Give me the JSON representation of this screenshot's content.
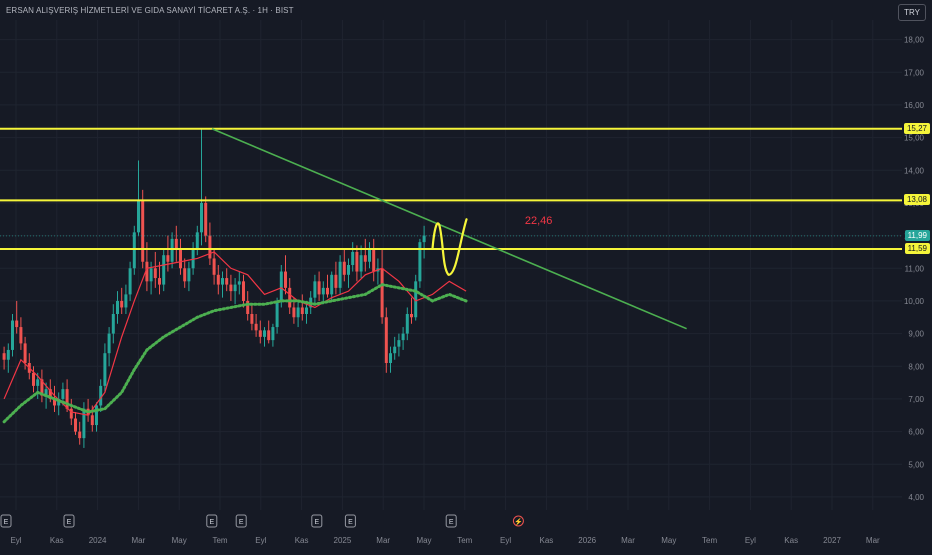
{
  "header": {
    "title": "ERSAN ALIŞVERIŞ HİZMETLERİ VE GIDA SANAYİ TİCARET A.Ş. · 1H · BIST",
    "currency": "TRY"
  },
  "colors": {
    "background": "#161a25",
    "grid": "#1f2430",
    "up": "#26a69a",
    "down": "#ef5350",
    "support_lines": "#f5f53a",
    "trendline": "#4caf50",
    "ema_fast": "#f23645",
    "ema_slow": "#4caf50",
    "current_price_tag": "#26a69a",
    "drawing_curve": "#f5f53a",
    "annotation": "#f23645"
  },
  "chart_data": {
    "type": "candlestick",
    "ylim": [
      3.6,
      18.6
    ],
    "yticks": [
      "4,00",
      "5,00",
      "6,00",
      "7,00",
      "8,00",
      "9,00",
      "10,00",
      "11,00",
      "12,00",
      "13,00",
      "14,00",
      "15,00",
      "16,00",
      "17,00",
      "18,00"
    ],
    "xticks": [
      "Eyl",
      "Kas",
      "2024",
      "Mar",
      "May",
      "Tem",
      "Eyl",
      "Kas",
      "2025",
      "Mar",
      "May",
      "Tem",
      "Eyl",
      "Kas",
      "2026",
      "Mar",
      "May",
      "Tem",
      "Eyl",
      "Kas",
      "2027",
      "Mar"
    ],
    "horizontal_levels": [
      {
        "label": "15,27",
        "value": 15.27
      },
      {
        "label": "13,08",
        "value": 13.08
      },
      {
        "label": "11,59",
        "value": 11.59
      }
    ],
    "current_price": {
      "label": "11,99",
      "value": 11.99
    },
    "trendline": {
      "from": {
        "x": 50.0,
        "y": 15.27
      },
      "to": {
        "x": 163.0,
        "y": 9.15
      }
    },
    "annotation": {
      "text": "22,46",
      "x": 124.5,
      "y": 12.35
    },
    "events": [
      {
        "label": "E",
        "x": 0
      },
      {
        "label": "E",
        "x": 15
      },
      {
        "label": "E",
        "x": 49
      },
      {
        "label": "E",
        "x": 56
      },
      {
        "label": "E",
        "x": 74
      },
      {
        "label": "E",
        "x": 82
      },
      {
        "label": "E",
        "x": 106
      },
      {
        "label": "⚡",
        "x": 122
      }
    ],
    "ohlc": [
      [
        8.4,
        8.6,
        7.9,
        8.2
      ],
      [
        8.2,
        8.7,
        7.8,
        8.5
      ],
      [
        8.5,
        9.6,
        8.3,
        9.4
      ],
      [
        9.4,
        10.0,
        9.0,
        9.2
      ],
      [
        9.2,
        9.5,
        8.5,
        8.7
      ],
      [
        8.7,
        8.9,
        7.9,
        8.1
      ],
      [
        8.1,
        8.4,
        7.6,
        7.8
      ],
      [
        7.8,
        8.0,
        7.2,
        7.4
      ],
      [
        7.4,
        7.8,
        7.0,
        7.6
      ],
      [
        7.6,
        7.9,
        6.9,
        7.1
      ],
      [
        7.1,
        7.5,
        6.7,
        7.3
      ],
      [
        7.3,
        7.6,
        6.9,
        7.0
      ],
      [
        7.0,
        7.4,
        6.6,
        6.8
      ],
      [
        6.8,
        7.2,
        6.5,
        7.0
      ],
      [
        7.0,
        7.5,
        6.8,
        7.3
      ],
      [
        7.3,
        7.6,
        6.6,
        6.7
      ],
      [
        6.7,
        7.0,
        6.2,
        6.4
      ],
      [
        6.4,
        6.6,
        5.9,
        6.0
      ],
      [
        6.0,
        6.3,
        5.6,
        5.8
      ],
      [
        5.8,
        6.9,
        5.5,
        6.7
      ],
      [
        6.7,
        7.0,
        6.3,
        6.5
      ],
      [
        6.5,
        6.8,
        6.0,
        6.2
      ],
      [
        6.2,
        6.9,
        6.0,
        6.8
      ],
      [
        6.8,
        7.6,
        6.6,
        7.4
      ],
      [
        7.4,
        8.7,
        7.2,
        8.4
      ],
      [
        8.4,
        9.2,
        8.0,
        9.0
      ],
      [
        9.0,
        9.9,
        8.7,
        9.6
      ],
      [
        9.6,
        10.3,
        9.3,
        10.0
      ],
      [
        10.0,
        10.4,
        9.6,
        9.8
      ],
      [
        9.8,
        10.5,
        9.6,
        10.2
      ],
      [
        10.2,
        11.2,
        10.0,
        11.0
      ],
      [
        11.0,
        12.3,
        10.8,
        12.1
      ],
      [
        12.1,
        14.3,
        12.0,
        13.1
      ],
      [
        13.1,
        13.4,
        11.0,
        11.2
      ],
      [
        11.2,
        11.8,
        10.3,
        10.6
      ],
      [
        10.6,
        11.2,
        10.2,
        11.0
      ],
      [
        11.0,
        11.5,
        10.4,
        10.7
      ],
      [
        10.7,
        11.2,
        10.2,
        10.5
      ],
      [
        10.5,
        11.6,
        10.3,
        11.4
      ],
      [
        11.4,
        12.0,
        10.9,
        11.2
      ],
      [
        11.2,
        12.1,
        11.0,
        11.9
      ],
      [
        11.9,
        12.3,
        11.2,
        11.6
      ],
      [
        11.6,
        11.9,
        10.8,
        11.0
      ],
      [
        11.0,
        11.3,
        10.4,
        10.6
      ],
      [
        10.6,
        11.2,
        10.3,
        11.0
      ],
      [
        11.0,
        11.8,
        10.8,
        11.6
      ],
      [
        11.6,
        12.3,
        11.4,
        12.1
      ],
      [
        12.1,
        15.27,
        11.7,
        13.0
      ],
      [
        13.0,
        13.2,
        11.8,
        12.0
      ],
      [
        12.0,
        12.4,
        11.1,
        11.3
      ],
      [
        11.3,
        11.6,
        10.5,
        10.8
      ],
      [
        10.8,
        11.1,
        10.2,
        10.5
      ],
      [
        10.5,
        10.9,
        10.1,
        10.7
      ],
      [
        10.7,
        11.0,
        10.3,
        10.5
      ],
      [
        10.5,
        10.8,
        10.0,
        10.3
      ],
      [
        10.3,
        10.7,
        9.9,
        10.5
      ],
      [
        10.5,
        10.9,
        10.2,
        10.6
      ],
      [
        10.6,
        10.8,
        9.8,
        10.0
      ],
      [
        10.0,
        10.3,
        9.4,
        9.6
      ],
      [
        9.6,
        9.9,
        9.1,
        9.3
      ],
      [
        9.3,
        9.6,
        8.9,
        9.1
      ],
      [
        9.1,
        9.4,
        8.7,
        8.9
      ],
      [
        8.9,
        9.2,
        8.6,
        9.1
      ],
      [
        9.1,
        9.4,
        8.7,
        8.8
      ],
      [
        8.8,
        9.3,
        8.6,
        9.2
      ],
      [
        9.2,
        10.1,
        9.0,
        10.0
      ],
      [
        10.0,
        11.1,
        9.8,
        10.9
      ],
      [
        10.9,
        11.4,
        10.2,
        10.4
      ],
      [
        10.4,
        10.7,
        9.6,
        9.8
      ],
      [
        9.8,
        10.1,
        9.3,
        9.5
      ],
      [
        9.5,
        10.0,
        9.2,
        9.8
      ],
      [
        9.8,
        10.2,
        9.4,
        9.6
      ],
      [
        9.6,
        10.0,
        9.3,
        9.8
      ],
      [
        9.8,
        10.3,
        9.6,
        10.1
      ],
      [
        10.1,
        10.8,
        9.9,
        10.6
      ],
      [
        10.6,
        10.9,
        10.0,
        10.2
      ],
      [
        10.2,
        10.6,
        9.9,
        10.4
      ],
      [
        10.4,
        10.8,
        10.1,
        10.2
      ],
      [
        10.2,
        10.9,
        10.0,
        10.8
      ],
      [
        10.8,
        11.2,
        10.2,
        10.4
      ],
      [
        10.4,
        11.4,
        10.2,
        11.2
      ],
      [
        11.2,
        11.6,
        10.6,
        10.8
      ],
      [
        10.8,
        11.3,
        10.4,
        11.1
      ],
      [
        11.1,
        11.8,
        10.9,
        11.5
      ],
      [
        11.5,
        11.7,
        10.6,
        10.9
      ],
      [
        10.9,
        11.7,
        10.7,
        11.4
      ],
      [
        11.4,
        11.9,
        10.9,
        11.2
      ],
      [
        11.2,
        11.8,
        11.0,
        11.6
      ],
      [
        11.6,
        11.9,
        10.6,
        10.9
      ],
      [
        10.9,
        11.3,
        10.5,
        11.0
      ],
      [
        11.0,
        11.6,
        9.3,
        9.5
      ],
      [
        9.5,
        9.8,
        7.8,
        8.1
      ],
      [
        8.1,
        8.6,
        7.8,
        8.4
      ],
      [
        8.4,
        8.9,
        8.2,
        8.6
      ],
      [
        8.6,
        9.0,
        8.3,
        8.8
      ],
      [
        8.8,
        9.2,
        8.5,
        9.0
      ],
      [
        9.0,
        9.8,
        8.8,
        9.6
      ],
      [
        9.6,
        10.1,
        9.3,
        9.5
      ],
      [
        9.5,
        10.8,
        9.4,
        10.6
      ],
      [
        10.6,
        11.9,
        10.4,
        11.8
      ],
      [
        11.8,
        12.3,
        11.3,
        12.0
      ]
    ],
    "ema_fast": [
      [
        0,
        7.0
      ],
      [
        4,
        8.2
      ],
      [
        8,
        7.7
      ],
      [
        12,
        7.1
      ],
      [
        16,
        6.6
      ],
      [
        20,
        6.5
      ],
      [
        24,
        7.2
      ],
      [
        28,
        8.9
      ],
      [
        31,
        10.0
      ],
      [
        34,
        11.0
      ],
      [
        38,
        11.1
      ],
      [
        42,
        11.2
      ],
      [
        46,
        11.3
      ],
      [
        50,
        11.5
      ],
      [
        54,
        11.0
      ],
      [
        58,
        10.8
      ],
      [
        62,
        10.2
      ],
      [
        66,
        10.4
      ],
      [
        70,
        10.0
      ],
      [
        74,
        9.8
      ],
      [
        78,
        10.1
      ],
      [
        82,
        10.3
      ],
      [
        86,
        10.8
      ],
      [
        90,
        11.0
      ],
      [
        94,
        10.6
      ],
      [
        98,
        10.0
      ],
      [
        102,
        10.2
      ],
      [
        106,
        10.6
      ],
      [
        110,
        10.3
      ]
    ],
    "ema_slow": [
      [
        0,
        6.3
      ],
      [
        4,
        6.8
      ],
      [
        8,
        7.2
      ],
      [
        12,
        7.0
      ],
      [
        16,
        6.8
      ],
      [
        20,
        6.6
      ],
      [
        24,
        6.7
      ],
      [
        28,
        7.2
      ],
      [
        31,
        7.9
      ],
      [
        34,
        8.5
      ],
      [
        38,
        8.9
      ],
      [
        42,
        9.2
      ],
      [
        46,
        9.5
      ],
      [
        50,
        9.7
      ],
      [
        54,
        9.8
      ],
      [
        58,
        9.9
      ],
      [
        62,
        9.9
      ],
      [
        66,
        10.0
      ],
      [
        70,
        10.0
      ],
      [
        74,
        9.9
      ],
      [
        78,
        10.0
      ],
      [
        82,
        10.1
      ],
      [
        86,
        10.2
      ],
      [
        90,
        10.5
      ],
      [
        94,
        10.4
      ],
      [
        98,
        10.3
      ],
      [
        102,
        10.0
      ],
      [
        106,
        10.2
      ],
      [
        110,
        10.0
      ]
    ]
  }
}
